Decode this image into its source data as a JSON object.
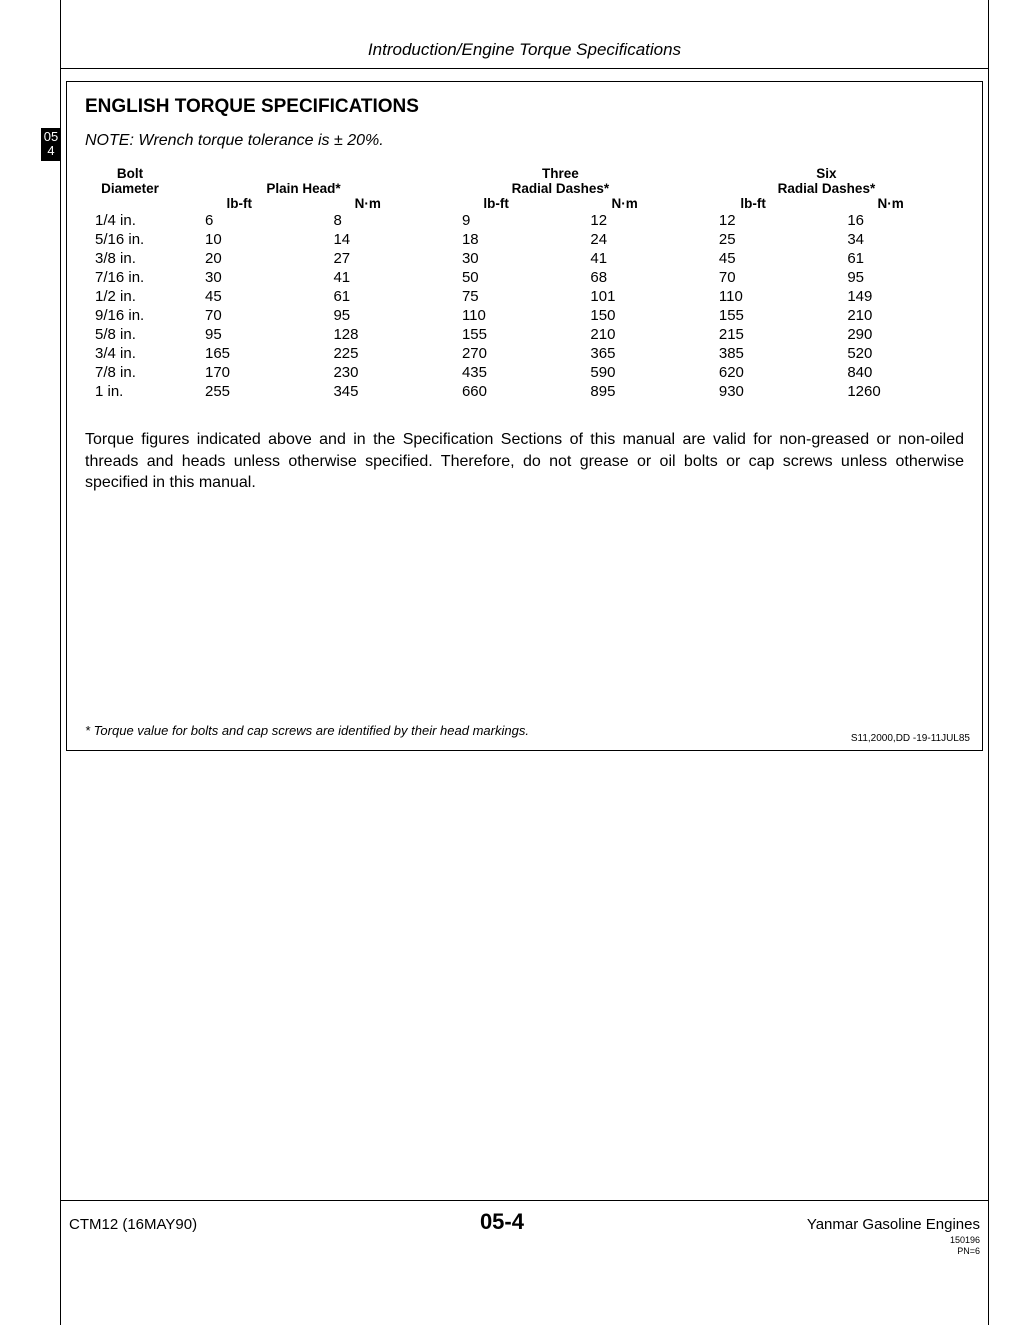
{
  "header": {
    "title": "Introduction/Engine Torque Specifications"
  },
  "tab": {
    "line1": "05",
    "line2": "4"
  },
  "section": {
    "title": "ENGLISH TORQUE SPECIFICATIONS",
    "note": "NOTE: Wrench torque tolerance is ± 20%.",
    "table": {
      "col_bolt_l1": "Bolt",
      "col_bolt_l2": "Diameter",
      "group_plain": "Plain Head*",
      "group_three_l1": "Three",
      "group_three_l2": "Radial Dashes*",
      "group_six_l1": "Six",
      "group_six_l2": "Radial Dashes*",
      "unit_lbft": "lb-ft",
      "unit_nm": "N·m",
      "rows": [
        {
          "size": "1/4 in.",
          "p_lbft": "6",
          "p_nm": "8",
          "t_lbft": "9",
          "t_nm": "12",
          "s_lbft": "12",
          "s_nm": "16"
        },
        {
          "size": "5/16 in.",
          "p_lbft": "10",
          "p_nm": "14",
          "t_lbft": "18",
          "t_nm": "24",
          "s_lbft": "25",
          "s_nm": "34"
        },
        {
          "size": "3/8 in.",
          "p_lbft": "20",
          "p_nm": "27",
          "t_lbft": "30",
          "t_nm": "41",
          "s_lbft": "45",
          "s_nm": "61"
        },
        {
          "size": "7/16 in.",
          "p_lbft": "30",
          "p_nm": "41",
          "t_lbft": "50",
          "t_nm": "68",
          "s_lbft": "70",
          "s_nm": "95"
        },
        {
          "size": "1/2 in.",
          "p_lbft": "45",
          "p_nm": "61",
          "t_lbft": "75",
          "t_nm": "101",
          "s_lbft": "110",
          "s_nm": "149"
        },
        {
          "size": "9/16 in.",
          "p_lbft": "70",
          "p_nm": "95",
          "t_lbft": "110",
          "t_nm": "150",
          "s_lbft": "155",
          "s_nm": "210"
        },
        {
          "size": "5/8 in.",
          "p_lbft": "95",
          "p_nm": "128",
          "t_lbft": "155",
          "t_nm": "210",
          "s_lbft": "215",
          "s_nm": "290"
        },
        {
          "size": "3/4 in.",
          "p_lbft": "165",
          "p_nm": "225",
          "t_lbft": "270",
          "t_nm": "365",
          "s_lbft": "385",
          "s_nm": "520"
        },
        {
          "size": "7/8 in.",
          "p_lbft": "170",
          "p_nm": "230",
          "t_lbft": "435",
          "t_nm": "590",
          "s_lbft": "620",
          "s_nm": "840"
        },
        {
          "size": "1 in.",
          "p_lbft": "255",
          "p_nm": "345",
          "t_lbft": "660",
          "t_nm": "895",
          "s_lbft": "930",
          "s_nm": "1260"
        }
      ]
    },
    "body_text": "Torque figures indicated above and in the Specification Sections of this manual are valid for non-greased or non-oiled threads and heads unless otherwise specified. Therefore, do not grease or oil bolts or cap screws unless otherwise specified in this manual.",
    "footnote": "* Torque value for bolts and cap screws are identified by their head markings.",
    "doc_code": "S11,2000,DD    -19-11JUL85"
  },
  "footer": {
    "left": "CTM12 (16MAY90)",
    "center": "05-4",
    "right": "Yanmar Gasoline Engines",
    "sub1": "150196",
    "sub2": "PN=6"
  }
}
